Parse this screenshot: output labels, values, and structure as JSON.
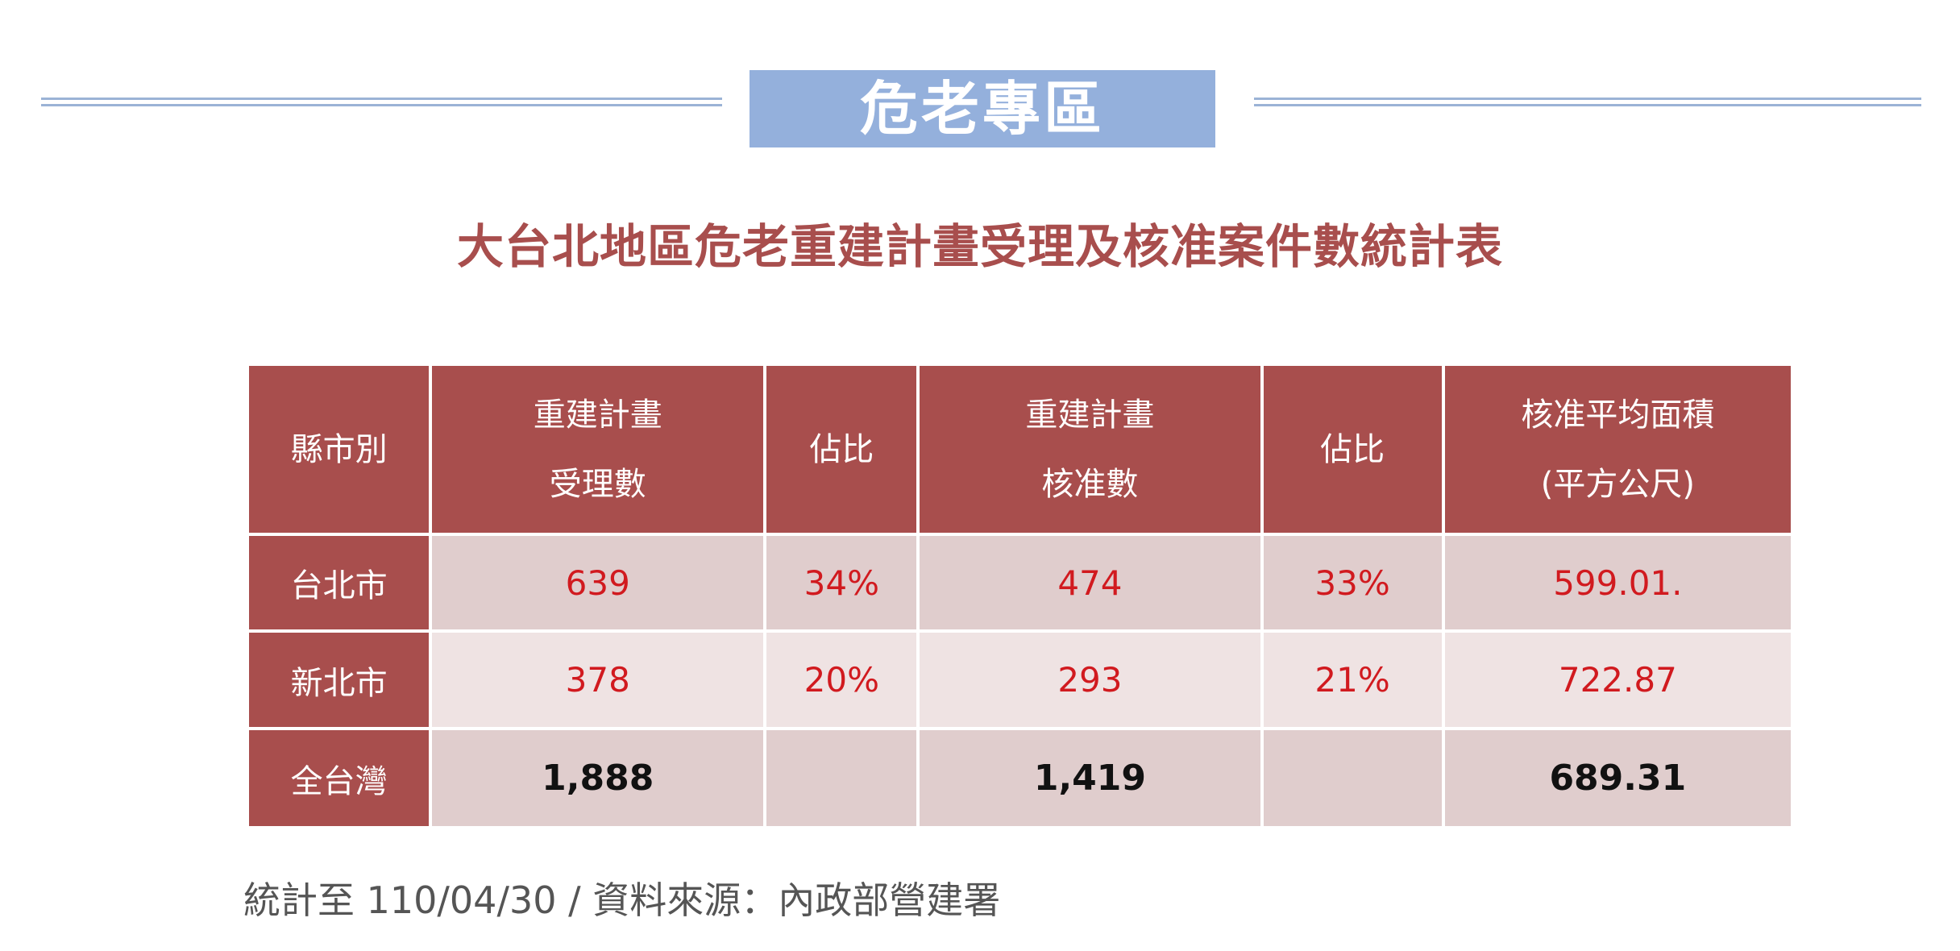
{
  "banner": {
    "title": "危老專區"
  },
  "title": "大台北地區危老重建計畫受理及核准案件數統計表",
  "table": {
    "headers": [
      {
        "line1": "縣市別",
        "line2": ""
      },
      {
        "line1": "重建計畫",
        "line2": "受理數"
      },
      {
        "line1": "佔比",
        "line2": ""
      },
      {
        "line1": "重建計畫",
        "line2": "核准數"
      },
      {
        "line1": "佔比",
        "line2": ""
      },
      {
        "line1": "核准平均面積",
        "line2": "(平方公尺)"
      }
    ],
    "rows": [
      {
        "city": "台北市",
        "received": "639",
        "received_share": "34%",
        "approved": "474",
        "approved_share": "33%",
        "avg_area": "599.01."
      },
      {
        "city": "新北市",
        "received": "378",
        "received_share": "20%",
        "approved": "293",
        "approved_share": "21%",
        "avg_area": "722.87"
      },
      {
        "city": "全台灣",
        "received": "1,888",
        "received_share": "",
        "approved": "1,419",
        "approved_share": "",
        "avg_area": "689.31"
      }
    ]
  },
  "footnote": "統計至 110/04/30  /  資料來源：內政部營建署",
  "colors": {
    "header_bg": "#a84e4d",
    "title_text": "#a84e4d",
    "banner_bg": "#94b0dc",
    "value_red": "#d11a1f",
    "row_dark": "#e0cdcd",
    "row_light": "#efe3e3"
  }
}
